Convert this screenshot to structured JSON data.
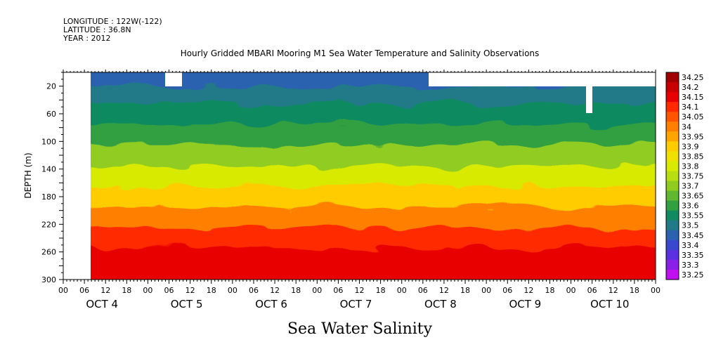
{
  "header": {
    "longitude": "LONGITUDE : 122W(-122)",
    "latitude": "LATITUDE : 36.8N",
    "year": "YEAR : 2012"
  },
  "chart_data": {
    "type": "heatmap",
    "title": "Hourly Gridded MBARI Mooring M1 Sea Water Temperature and Salinity Observations",
    "xlabel": "Sea Water Salinity",
    "ylabel": "DEPTH (m)",
    "ylim": [
      300,
      0
    ],
    "y_ticks": [
      20,
      60,
      100,
      140,
      180,
      220,
      260,
      300
    ],
    "x_hour_ticks": [
      "00",
      "06",
      "12",
      "18",
      "00",
      "06",
      "12",
      "18",
      "00",
      "06",
      "12",
      "18",
      "00",
      "06",
      "12",
      "18",
      "00",
      "06",
      "12",
      "18",
      "00",
      "06",
      "12",
      "18",
      "00",
      "06",
      "12",
      "18",
      "00"
    ],
    "x_day_labels": [
      "OCT 4",
      "OCT 5",
      "OCT 6",
      "OCT 7",
      "OCT 8",
      "OCT 9",
      "OCT 10"
    ],
    "colorbar_levels": [
      "34.25",
      "34.2",
      "34.15",
      "34.1",
      "34.05",
      "34",
      "33.95",
      "33.9",
      "33.85",
      "33.8",
      "33.75",
      "33.7",
      "33.65",
      "33.6",
      "33.55",
      "33.5",
      "33.45",
      "33.4",
      "33.35",
      "33.3",
      "33.25"
    ],
    "colorbar_colors": [
      "#a00000",
      "#c80000",
      "#e80000",
      "#ff2a00",
      "#ff5500",
      "#ff8000",
      "#ffa500",
      "#ffcc00",
      "#f0e000",
      "#d8ea00",
      "#b8dd10",
      "#90cc20",
      "#60b830",
      "#30a040",
      "#108a60",
      "#207a88",
      "#2a62b0",
      "#3a48d0",
      "#5a30e0",
      "#8a20e8",
      "#c010f0"
    ],
    "profile": [
      {
        "depth": 10,
        "salinity": 33.47
      },
      {
        "depth": 30,
        "salinity": 33.52
      },
      {
        "depth": 60,
        "salinity": 33.57
      },
      {
        "depth": 90,
        "salinity": 33.62
      },
      {
        "depth": 120,
        "salinity": 33.72
      },
      {
        "depth": 150,
        "salinity": 33.82
      },
      {
        "depth": 180,
        "salinity": 33.92
      },
      {
        "depth": 210,
        "salinity": 34.02
      },
      {
        "depth": 240,
        "salinity": 34.12
      },
      {
        "depth": 270,
        "salinity": 34.16
      },
      {
        "depth": 300,
        "salinity": 34.14
      }
    ],
    "grid": false,
    "legend": "right colorbar"
  }
}
